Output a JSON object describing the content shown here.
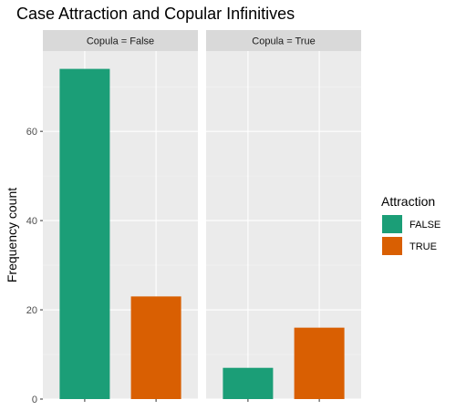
{
  "chart_data": {
    "type": "bar",
    "title": "Case Attraction and Copular Infinitives",
    "xlabel": "",
    "ylabel": "Frequency count",
    "ylim": [
      0,
      78
    ],
    "y_ticks": [
      0,
      20,
      40,
      60
    ],
    "facets": [
      {
        "label": "Copula = False",
        "values": {
          "FALSE": 74,
          "TRUE": 23
        }
      },
      {
        "label": "Copula = True",
        "values": {
          "FALSE": 7,
          "TRUE": 16
        }
      }
    ],
    "legend": {
      "title": "Attraction",
      "position": "right",
      "entries": [
        {
          "label": "FALSE",
          "color": "#1B9E77"
        },
        {
          "label": "TRUE",
          "color": "#D95F02"
        }
      ]
    },
    "grid": true
  }
}
